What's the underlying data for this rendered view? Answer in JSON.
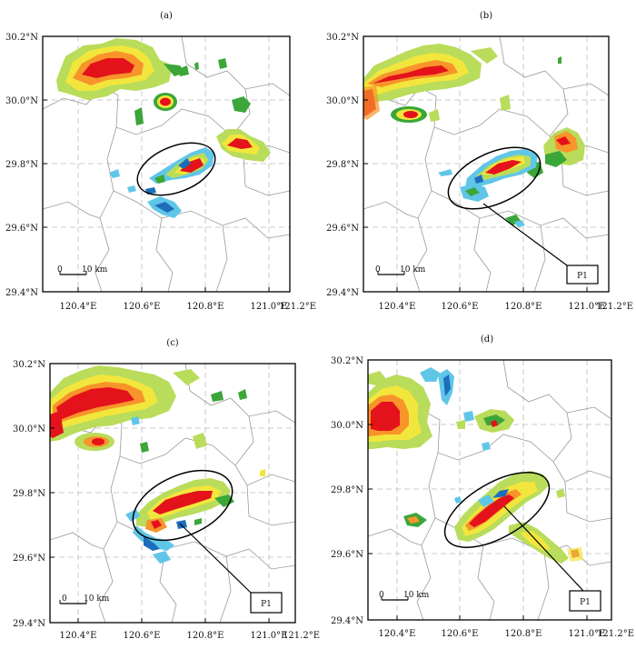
{
  "panels": [
    {
      "label": "(a)",
      "x_ticks": [
        "120.4°E",
        "120.6°E",
        "120.8°E",
        "121.0°E",
        "121.2°E"
      ],
      "y_ticks": [
        "30.2°N",
        "30.0°N",
        "29.8°N",
        "29.6°N",
        "29.4°N"
      ],
      "scale_zero": "0",
      "scale_text": "10 km",
      "point_label": ""
    },
    {
      "label": "(b)",
      "x_ticks": [
        "120.4°E",
        "120.6°E",
        "120.8°E",
        "121.0°E",
        "121.2°E"
      ],
      "y_ticks": [
        "30.2°N",
        "30.0°N",
        "29.8°N",
        "29.6°N",
        "29.4°N"
      ],
      "scale_zero": "0",
      "scale_text": "10 km",
      "point_label": "P1"
    },
    {
      "label": "(c)",
      "x_ticks": [
        "120.4°E",
        "120.6°E",
        "120.8°E",
        "121.0°E",
        "121.2°E"
      ],
      "y_ticks": [
        "30.2°N",
        "30.0°N",
        "29.8°N",
        "29.6°N",
        "29.4°N"
      ],
      "scale_zero": "0",
      "scale_text": "10 km",
      "point_label": "P1"
    },
    {
      "label": "(d)",
      "x_ticks": [
        "120.4°E",
        "120.6°E",
        "120.8°E",
        "121.0°E",
        "121.2°E"
      ],
      "y_ticks": [
        "30.2°N",
        "30.0°N",
        "29.8°N",
        "29.6°N",
        "29.4°N"
      ],
      "scale_zero": "0",
      "scale_text": "10 km",
      "point_label": "P1"
    }
  ],
  "colors": {
    "red": "#e3121b",
    "orange": "#f7942a",
    "yellow": "#f2e63c",
    "light_green": "#b9dc5a",
    "green": "#3ba639",
    "cyan": "#60c6e8",
    "blue": "#1c6dba",
    "boundary": "#9a9a9a",
    "grid": "#bbbbbb"
  }
}
